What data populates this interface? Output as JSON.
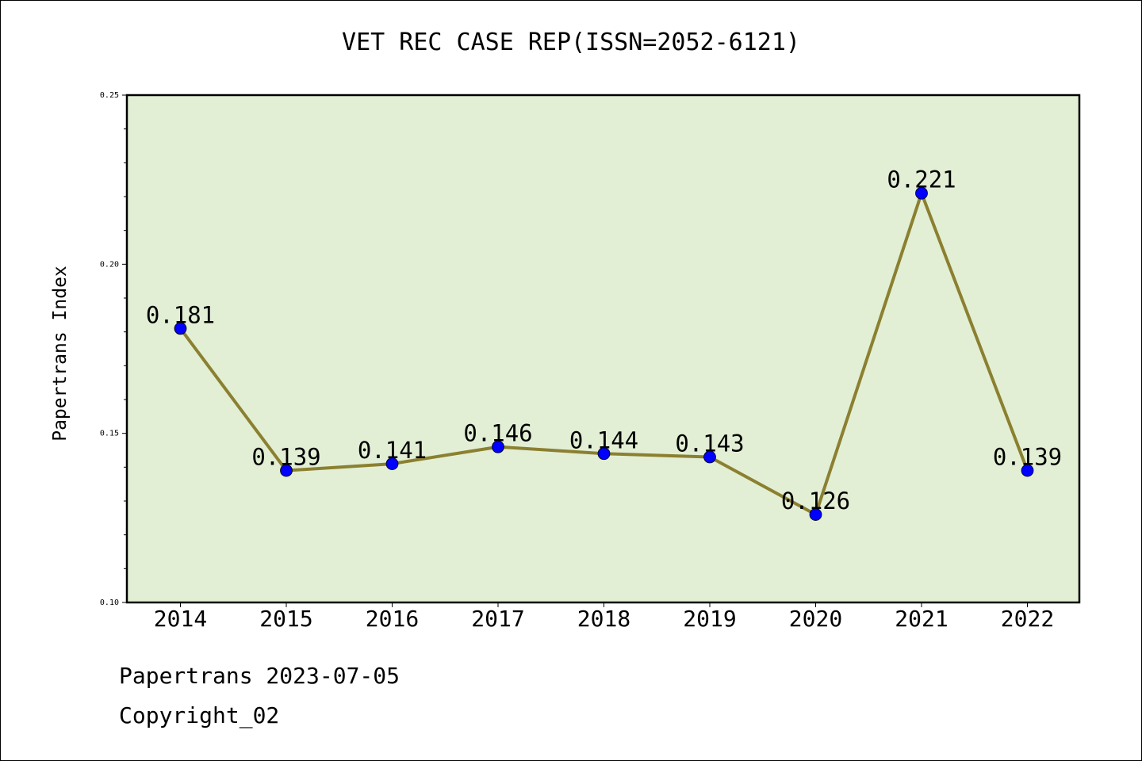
{
  "chart_data": {
    "type": "line",
    "title": "VET REC CASE REP(ISSN=2052-6121)",
    "xlabel": "",
    "ylabel": "Papertrans Index",
    "categories": [
      "2014",
      "2015",
      "2016",
      "2017",
      "2018",
      "2019",
      "2020",
      "2021",
      "2022"
    ],
    "series": [
      {
        "values": [
          0.181,
          0.139,
          0.141,
          0.146,
          0.144,
          0.143,
          0.126,
          0.221,
          0.139
        ]
      }
    ],
    "data_labels": [
      "0.181",
      "0.139",
      "0.141",
      "0.146",
      "0.144",
      "0.143",
      "0.126",
      "0.221",
      "0.139"
    ],
    "ylim": [
      0.1,
      0.25
    ],
    "yticks": [
      "0.10",
      "0.15",
      "0.20",
      "0.25"
    ],
    "grid": false,
    "colors": {
      "plot_background": "#e2efd5",
      "line": "#8b8030",
      "marker": "#0000ff"
    }
  },
  "footer": {
    "line1": "Papertrans 2023-07-05",
    "line2": "Copyright_02"
  }
}
